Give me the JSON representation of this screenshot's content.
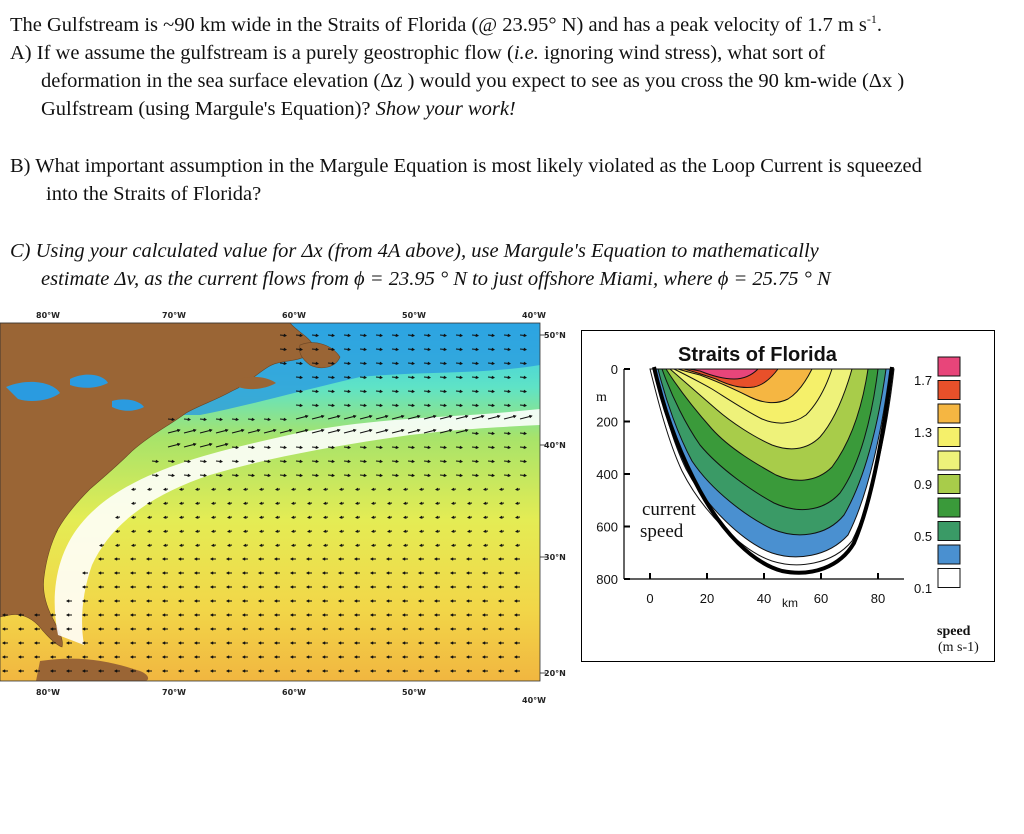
{
  "intro": {
    "a": "The Gulfstream is ~90 km wide in the Straits of Florida (@ 23.95° N) and has a peak velocity of 1.7 m s",
    "sup": "-1",
    "b": "."
  },
  "partA": {
    "l1": "A)  If we assume the gulfstream is a purely geostrophic flow (",
    "l1_ie": "i.e.",
    "l1_end": "  ignoring wind stress), what sort of",
    "l2": "deformation in the sea surface elevation (Δz ) would you expect to see as you cross the 90 km-wide (Δx )",
    "l3": "Gulfstream (using Margule's Equation)?  ",
    "l3_show": "Show your work!"
  },
  "partB": {
    "l1": "B)  What important assumption in the Margule Equation is most likely violated as the Loop Current is squeezed",
    "l2": "into the Straits of Florida?"
  },
  "partC": {
    "l1": "C)  Using your calculated value for  Δx (from 4A above), use Margule's Equation to mathematically",
    "l2": "estimate  Δv, as the current flows from  ϕ  = 23.95 ° N to just offshore Miami, where  ϕ  = 25.75 ° N"
  },
  "map": {
    "lon_labels": [
      "80°W",
      "70°W",
      "60°W",
      "50°W",
      "40°W"
    ],
    "lat_labels": [
      "50°N",
      "40°N",
      "30°N",
      "20°N"
    ]
  },
  "section": {
    "title": "Straits of Florida",
    "depth_ticks": [
      "0",
      "200",
      "400",
      "600",
      "800"
    ],
    "depth_unit": "m",
    "x_ticks": [
      "0",
      "20",
      "40",
      "60",
      "80"
    ],
    "x_unit": "km",
    "label1": "current",
    "label2": "speed",
    "legend_values": [
      "1.7",
      "1.3",
      "0.9",
      "0.5",
      "0.1"
    ],
    "legend_title1": "speed",
    "legend_title2": "(m s-1)",
    "legend_colors": [
      "#e8457a",
      "#e8502a",
      "#f5b642",
      "#f5f06a",
      "#eef27a",
      "#a8cc4a",
      "#3a9a3a",
      "#3a9a66",
      "#4a90d0",
      "#ffffff"
    ]
  }
}
